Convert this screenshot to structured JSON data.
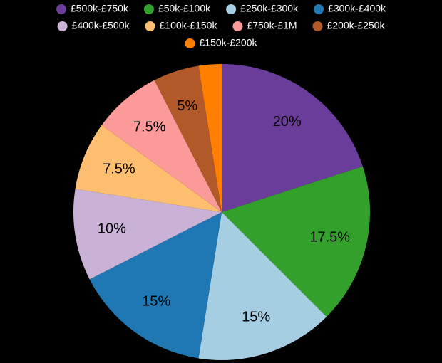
{
  "chart_data": {
    "type": "pie",
    "categories": [
      "£500k-£750k",
      "£50k-£100k",
      "£250k-£300k",
      "£300k-£400k",
      "£400k-£500k",
      "£100k-£150k",
      "£750k-£1M",
      "£200k-£250k",
      "£150k-£200k"
    ],
    "values": [
      20,
      17.5,
      15,
      15,
      10,
      7.5,
      7.5,
      5,
      2.5
    ],
    "value_labels": [
      "20%",
      "17.5%",
      "15%",
      "15%",
      "10%",
      "7.5%",
      "7.5%",
      "5%",
      null
    ],
    "colors": [
      "#6a3d9a",
      "#33a02c",
      "#a6cee3",
      "#1f78b4",
      "#cab2d6",
      "#fdbf6f",
      "#fb9a99",
      "#b15928",
      "#ff7f00"
    ],
    "legend": "top"
  }
}
